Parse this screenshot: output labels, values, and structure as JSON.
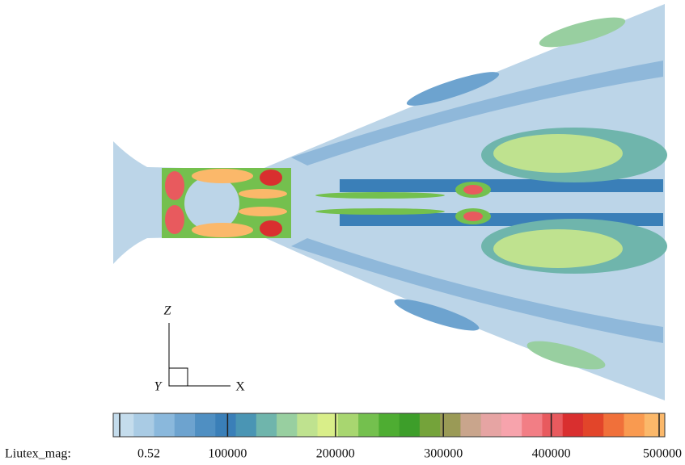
{
  "chart_data": {
    "type": "contour",
    "axes_triad": {
      "z": "Z",
      "y": "Y",
      "x": "X"
    },
    "colorbar": {
      "label": "Liutex_mag:",
      "lim": [
        0.52,
        500000
      ],
      "ticks": [
        0.52,
        100000,
        200000,
        300000,
        400000,
        500000
      ],
      "colors": [
        "#c4dcec",
        "#a9cbe4",
        "#8ab8dc",
        "#6da3cf",
        "#4f8fc2",
        "#3a7fb8",
        "#4a95b4",
        "#6fb5ac",
        "#98cfa0",
        "#bfe28f",
        "#d9ee89",
        "#a8d670",
        "#74c04e",
        "#4ead32",
        "#3d9e2a",
        "#74a33a",
        "#9a9a56",
        "#c9a58c",
        "#e6a4a3",
        "#f7a3ac",
        "#f27e85",
        "#e85a5e",
        "#d92f2f",
        "#e2452a",
        "#f0703a",
        "#f99a50",
        "#fbb86a"
      ]
    }
  }
}
